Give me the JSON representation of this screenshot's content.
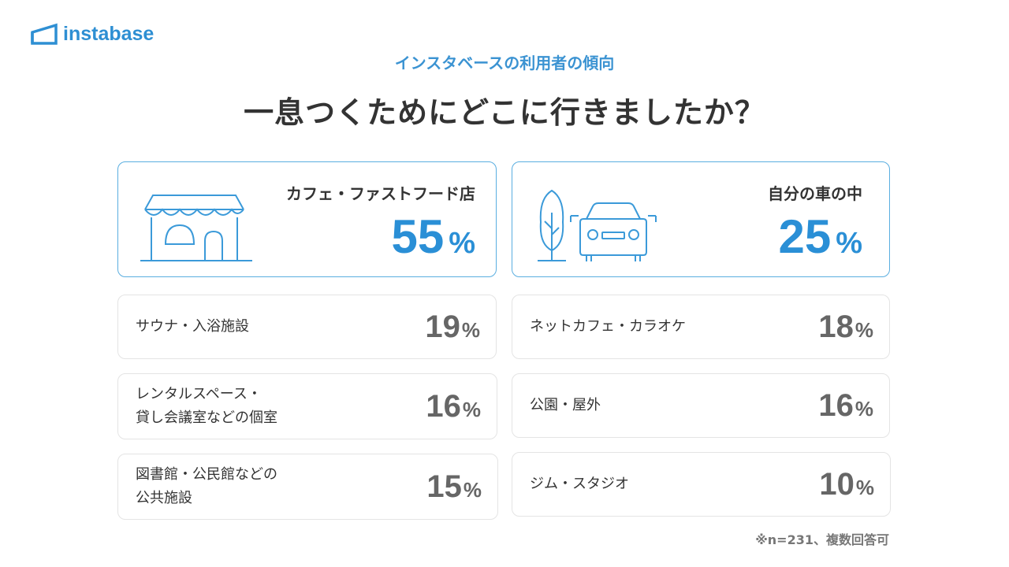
{
  "brand": {
    "name": "instabase"
  },
  "subtitle": "インスタベースの利用者の傾向",
  "title": "一息つくためにどこに行きましたか？",
  "highlights": [
    {
      "label": "カフェ・ファストフード店",
      "value": "55",
      "unit": "%",
      "icon": "storefront-icon"
    },
    {
      "label": "自分の車の中",
      "value": "25",
      "unit": "%",
      "icon": "car-and-tree-icon"
    }
  ],
  "items": [
    {
      "lines": [
        "サウナ・入浴施設"
      ],
      "value": "19",
      "unit": "%"
    },
    {
      "lines": [
        "ネットカフェ・カラオケ"
      ],
      "value": "18",
      "unit": "%"
    },
    {
      "lines": [
        "レンタルスペース・",
        "貸し会議室などの個室"
      ],
      "value": "16",
      "unit": "%"
    },
    {
      "lines": [
        "公園・屋外"
      ],
      "value": "16",
      "unit": "%"
    },
    {
      "lines": [
        "図書館・公民館などの",
        "公共施設"
      ],
      "value": "15",
      "unit": "%"
    },
    {
      "lines": [
        "ジム・スタジオ"
      ],
      "value": "10",
      "unit": "%"
    }
  ],
  "footnote": "※n=231、複数回答可",
  "colors": {
    "accent": "#2a8fd6",
    "border_highlight": "#5aaee0",
    "border_default": "#e4e4e4",
    "value_gray": "#666666"
  }
}
